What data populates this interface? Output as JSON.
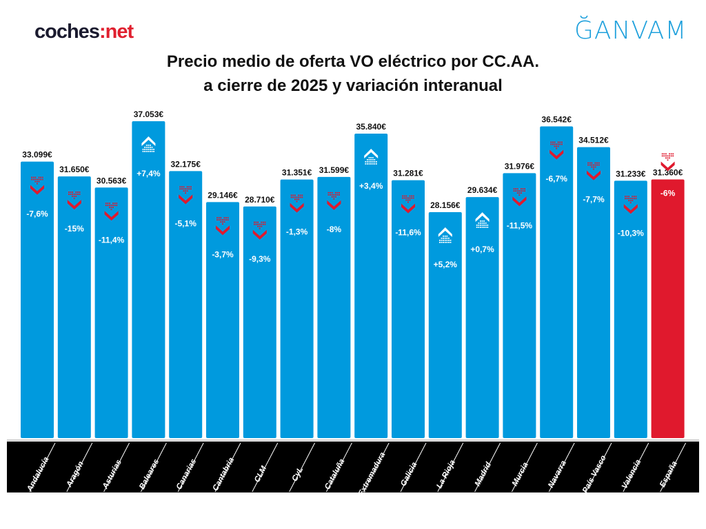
{
  "logos": {
    "left_prefix": "coches",
    "left_suffix": "net",
    "right": "ĞANVAM"
  },
  "title_line1": "Precio medio de oferta VO eléctrico por CC.AA.",
  "title_line2": "a cierre de 2025 y variación interanual",
  "colors": {
    "bar": "#009ade",
    "highlight": "#e0192d",
    "down_icon": "#e0192d",
    "up_icon": "#ffffff",
    "axis_band": "#000000"
  },
  "chart_data": {
    "type": "bar",
    "title": "Precio medio de oferta VO eléctrico por CC.AA. a cierre de 2025 y variación interanual",
    "categories": [
      "Andalucía",
      "Aragón",
      "Asturias",
      "Baleares",
      "Canarias",
      "Cantabria",
      "CLM",
      "CyL",
      "Cataluña",
      "Extremadura",
      "Galicia",
      "La Rioja",
      "Madrid",
      "Murcia",
      "Navarra",
      "País Vasco",
      "Valencia",
      "España"
    ],
    "values": [
      33099,
      31650,
      30563,
      37053,
      32175,
      29146,
      28710,
      31351,
      31599,
      35840,
      31281,
      28156,
      29634,
      31976,
      36542,
      34512,
      31233,
      31360
    ],
    "value_labels": [
      "33.099€",
      "31.650€",
      "30.563€",
      "37.053€",
      "32.175€",
      "29.146€",
      "28.710€",
      "31.351€",
      "31.599€",
      "35.840€",
      "31.281€",
      "28.156€",
      "29.634€",
      "31.976€",
      "36.542€",
      "34.512€",
      "31.233€",
      "31.360€"
    ],
    "variation": [
      -7.6,
      -15,
      -11.4,
      7.4,
      -5.1,
      -3.7,
      -9.3,
      -1.3,
      -8,
      3.4,
      -11.6,
      5.2,
      0.7,
      -11.5,
      -6.7,
      -7.7,
      -10.3,
      -6
    ],
    "variation_labels": [
      "-7,6%",
      "-15%",
      "-11,4%",
      "+7,4%",
      "-5,1%",
      "-3,7%",
      "-9,3%",
      "-1,3%",
      "-8%",
      "+3,4%",
      "-11,6%",
      "+5,2%",
      "+0,7%",
      "-11,5%",
      "-6,7%",
      "-7,7%",
      "-10,3%",
      "-6%"
    ],
    "highlight": "España",
    "xlabel": "",
    "ylabel": "",
    "grid": false,
    "legend": "none"
  }
}
